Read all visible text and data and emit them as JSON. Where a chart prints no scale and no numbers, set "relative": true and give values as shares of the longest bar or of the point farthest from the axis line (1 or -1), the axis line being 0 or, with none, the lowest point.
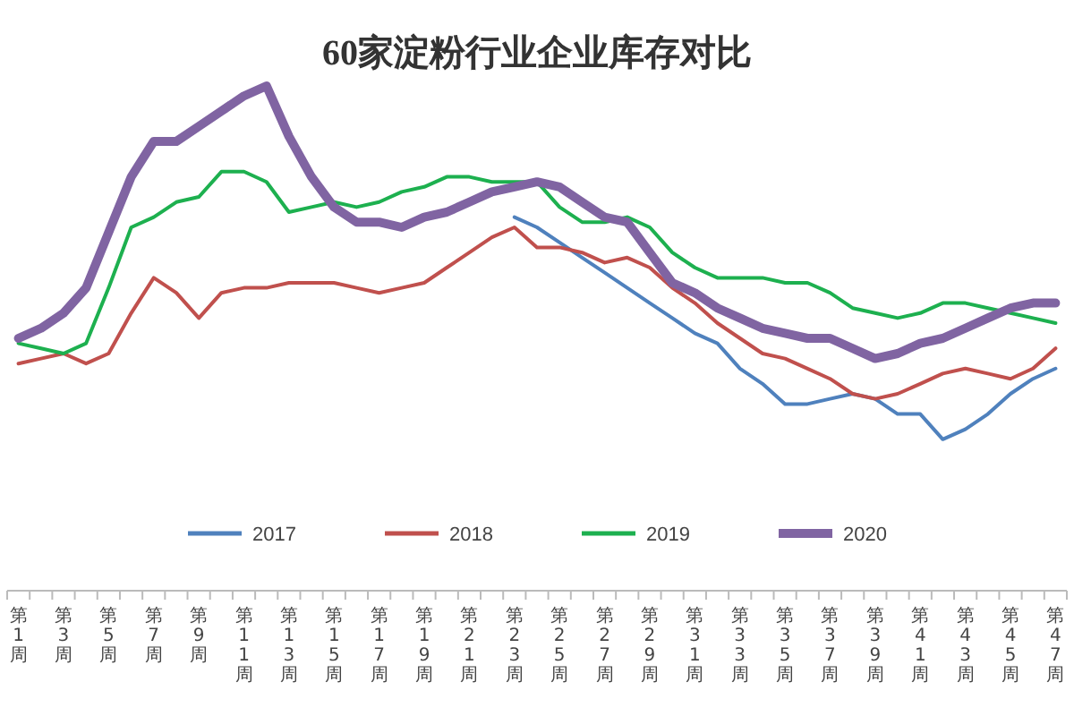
{
  "chart_data": {
    "type": "line",
    "title": "60家淀粉行业企业库存对比",
    "relative": true,
    "legend": "bottom",
    "marker": "none",
    "line_style": "solid",
    "categories": [
      "第1周",
      null,
      "第3周",
      null,
      "第5周",
      null,
      "第7周",
      null,
      "第9周",
      null,
      "第11周",
      null,
      "第13周",
      null,
      "第15周",
      null,
      "第17周",
      null,
      "第19周",
      null,
      "第21周",
      null,
      "第23周",
      null,
      "第25周",
      null,
      "第27周",
      null,
      "第29周",
      null,
      "第31周",
      null,
      "第33周",
      null,
      "第35周",
      null,
      "第37周",
      null,
      "第39周",
      null,
      "第41周",
      null,
      "第43周",
      null,
      "第45周",
      null,
      "第47周"
    ],
    "series": [
      {
        "name": "2017",
        "color": "#4f81bd",
        "values": [
          null,
          null,
          null,
          null,
          null,
          null,
          null,
          null,
          null,
          null,
          null,
          null,
          null,
          null,
          null,
          null,
          null,
          null,
          null,
          null,
          null,
          null,
          0.74,
          0.72,
          0.69,
          0.66,
          0.63,
          0.6,
          0.57,
          0.54,
          0.51,
          0.49,
          0.44,
          0.41,
          0.37,
          0.37,
          0.38,
          0.39,
          0.38,
          0.35,
          0.35,
          0.3,
          0.32,
          0.35,
          0.39,
          0.42,
          0.44
        ]
      },
      {
        "name": "2018",
        "color": "#c0504d",
        "values": [
          0.45,
          0.46,
          0.47,
          0.45,
          0.47,
          0.55,
          0.62,
          0.59,
          0.54,
          0.59,
          0.6,
          0.6,
          0.61,
          0.61,
          0.61,
          0.6,
          0.59,
          0.6,
          0.61,
          0.64,
          0.67,
          0.7,
          0.72,
          0.68,
          0.68,
          0.67,
          0.65,
          0.66,
          0.64,
          0.6,
          0.57,
          0.53,
          0.5,
          0.47,
          0.46,
          0.44,
          0.42,
          0.39,
          0.38,
          0.39,
          0.41,
          0.43,
          0.44,
          0.43,
          0.42,
          0.44,
          0.48
        ]
      },
      {
        "name": "2019",
        "color": "#1db04f",
        "values": [
          0.49,
          0.48,
          0.47,
          0.49,
          0.6,
          0.72,
          0.74,
          0.77,
          0.78,
          0.83,
          0.83,
          0.81,
          0.75,
          0.76,
          0.77,
          0.76,
          0.77,
          0.79,
          0.8,
          0.82,
          0.82,
          0.81,
          0.81,
          0.81,
          0.76,
          0.73,
          0.73,
          0.74,
          0.72,
          0.67,
          0.64,
          0.62,
          0.62,
          0.62,
          0.61,
          0.61,
          0.59,
          0.56,
          0.55,
          0.54,
          0.55,
          0.57,
          0.57,
          0.56,
          0.55,
          0.54,
          0.53
        ]
      },
      {
        "name": "2020",
        "color": "#8064a2",
        "values": [
          0.5,
          0.52,
          0.55,
          0.6,
          0.71,
          0.82,
          0.89,
          0.89,
          0.92,
          0.95,
          0.98,
          1,
          0.9,
          0.82,
          0.76,
          0.73,
          0.73,
          0.72,
          0.74,
          0.75,
          0.77,
          0.79,
          0.8,
          0.81,
          0.8,
          0.77,
          0.74,
          0.73,
          0.67,
          0.61,
          0.59,
          0.56,
          0.54,
          0.52,
          0.51,
          0.5,
          0.5,
          0.48,
          0.46,
          0.47,
          0.49,
          0.5,
          0.52,
          0.54,
          0.56,
          0.57,
          0.57
        ]
      }
    ]
  }
}
